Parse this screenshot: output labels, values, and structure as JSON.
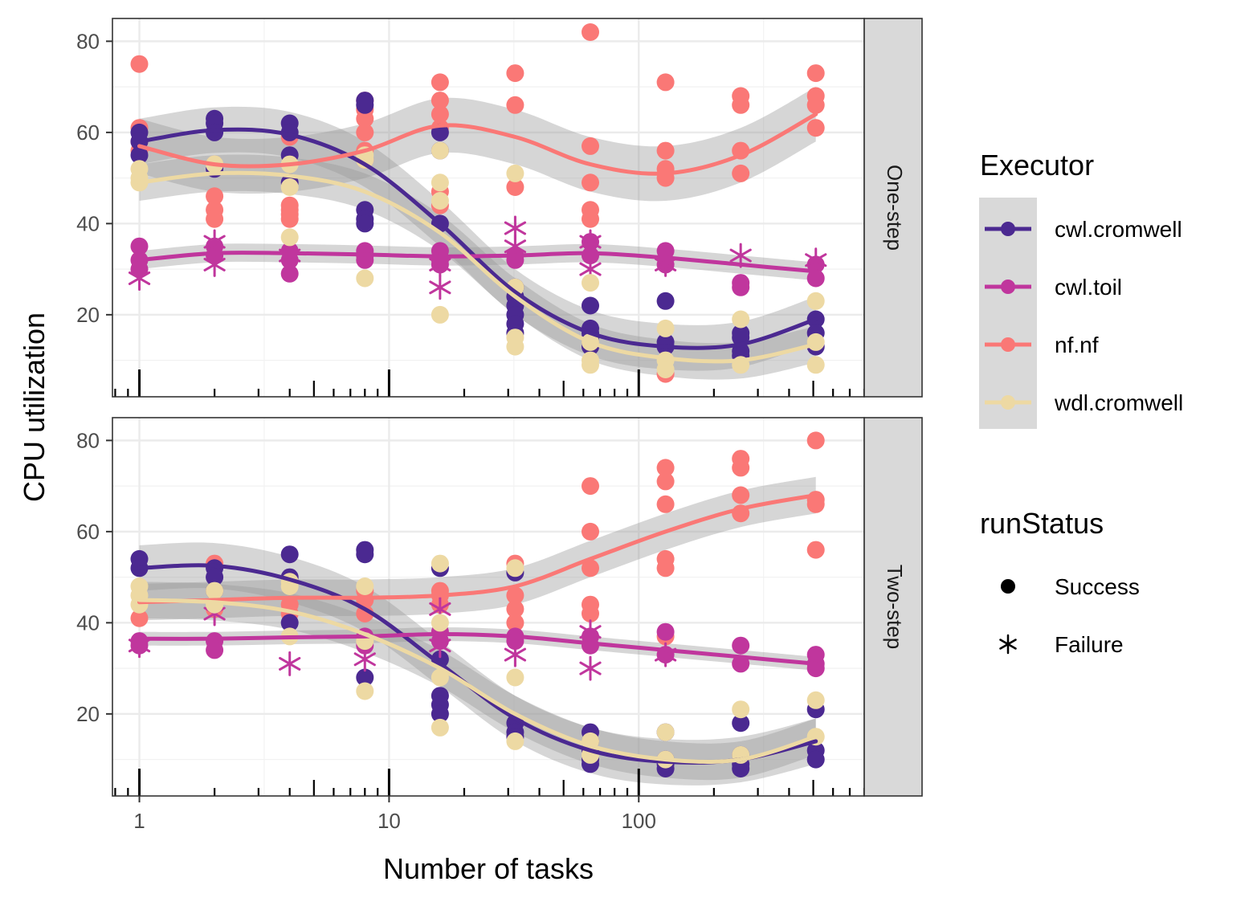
{
  "chart_data": {
    "type": "scatter",
    "subtype": "faceted scatter with loess smoothers and 95% confidence bands, log10 x axis",
    "xlabel": "Number of tasks",
    "ylabel": "CPU utilization",
    "x_scale": "log10",
    "xlim": [
      0.78,
      800
    ],
    "ylim": [
      2,
      85
    ],
    "x_ticks": [
      1,
      10,
      100
    ],
    "x_tick_labels": [
      "1",
      "10",
      "100"
    ],
    "y_ticks": [
      20,
      40,
      60,
      80
    ],
    "y_tick_labels": [
      "20",
      "40",
      "60",
      "80"
    ],
    "grid": true,
    "rug_ticks": "bottom (log ticks)",
    "theme": "bw",
    "legend_position": "right",
    "executor_legend": {
      "title": "Executor",
      "items": [
        {
          "key": "cwl.cromwell",
          "label": "cwl.cromwell",
          "color": "#4B2991"
        },
        {
          "key": "cwl.toil",
          "label": "cwl.toil",
          "color": "#C0369D"
        },
        {
          "key": "nf.nf",
          "label": "nf.nf",
          "color": "#FA7876"
        },
        {
          "key": "wdl.cromwell",
          "label": "wdl.cromwell",
          "color": "#EDD9A3"
        }
      ]
    },
    "status_legend": {
      "title": "runStatus",
      "items": [
        {
          "key": "Success",
          "label": "Success",
          "shape": "circle"
        },
        {
          "key": "Failure",
          "label": "Failure",
          "shape": "asterisk"
        }
      ]
    },
    "panels": [
      {
        "strip": "One-step",
        "smooths": [
          {
            "executor": "cwl.cromwell",
            "x": [
              1,
              2,
              4,
              8,
              16,
              32,
              64,
              128,
              256,
              512
            ],
            "y": [
              58,
              60.5,
              59.5,
              53,
              40,
              25,
              16,
              13,
              13.5,
              19
            ],
            "band": 5
          },
          {
            "executor": "cwl.toil",
            "x": [
              1,
              2,
              4,
              8,
              16,
              32,
              64,
              128,
              256,
              512
            ],
            "y": [
              32,
              33.5,
              33.5,
              33.2,
              32.8,
              33,
              33.5,
              32.5,
              31,
              29.5
            ],
            "band": 2
          },
          {
            "executor": "nf.nf",
            "x": [
              1,
              2,
              4,
              8,
              16,
              32,
              64,
              128,
              256,
              512
            ],
            "y": [
              57,
              53,
              53,
              56,
              61.5,
              59,
              53,
              51,
              55,
              64
            ],
            "band": 6
          },
          {
            "executor": "wdl.cromwell",
            "x": [
              1,
              2,
              4,
              8,
              16,
              32,
              64,
              128,
              256,
              512
            ],
            "y": [
              49,
              51,
              50.5,
              47,
              38,
              24,
              14,
              10.5,
              10,
              13.5
            ],
            "band": 4
          }
        ],
        "points": [
          {
            "executor": "nf.nf",
            "status": "Success",
            "x": [
              1,
              1,
              1,
              1,
              2,
              2,
              2,
              2,
              4,
              4,
              4,
              4,
              4,
              8,
              8,
              8,
              8,
              8,
              8,
              16,
              16,
              16,
              16,
              16,
              16,
              32,
              32,
              32,
              64,
              64,
              64,
              64,
              64,
              128,
              128,
              128,
              128,
              128,
              256,
              256,
              256,
              256,
              512,
              512,
              512,
              512
            ],
            "y": [
              75,
              61,
              58,
              56,
              53,
              46,
              43,
              41,
              59,
              44,
              42,
              41,
              43,
              67,
              65,
              63,
              60,
              56,
              54,
              71,
              67,
              64,
              61,
              47,
              44,
              73,
              66,
              48,
              82,
              57,
              49,
              43,
              41,
              71,
              56,
              52,
              50,
              7,
              68,
              66,
              56,
              51,
              73,
              68,
              66,
              61
            ]
          },
          {
            "executor": "cwl.cromwell",
            "status": "Success",
            "x": [
              1,
              1,
              1,
              2,
              2,
              2,
              2,
              4,
              4,
              4,
              4,
              8,
              8,
              8,
              8,
              8,
              16,
              16,
              16,
              32,
              32,
              32,
              32,
              32,
              32,
              64,
              64,
              64,
              64,
              64,
              64,
              128,
              128,
              128,
              256,
              256,
              256,
              256,
              512,
              512,
              512
            ],
            "y": [
              60,
              58,
              55,
              63,
              62,
              60,
              52,
              62,
              60,
              55,
              49,
              67,
              66,
              43,
              41,
              40,
              60,
              56,
              40,
              26,
              24,
              22,
              20,
              18,
              16,
              22,
              17,
              16,
              15,
              14,
              13,
              23,
              14,
              13,
              16,
              15,
              12,
              11,
              19,
              16,
              13
            ]
          },
          {
            "executor": "cwl.toil",
            "status": "Success",
            "x": [
              1,
              1,
              1,
              2,
              2,
              4,
              4,
              4,
              8,
              8,
              8,
              16,
              16,
              16,
              32,
              32,
              64,
              64,
              128,
              128,
              256,
              256,
              512,
              512
            ],
            "y": [
              35,
              32,
              30,
              35,
              33,
              34,
              32,
              29,
              34,
              33,
              32,
              34,
              32,
              31,
              33,
              32,
              36,
              33,
              34,
              31,
              27,
              26,
              31,
              28
            ]
          },
          {
            "executor": "cwl.toil",
            "status": "Failure",
            "x": [
              1,
              2,
              2,
              4,
              16,
              16,
              32,
              32,
              64,
              64,
              128,
              256,
              512
            ],
            "y": [
              28,
              36,
              31,
              33,
              31,
              26,
              39,
              35,
              36,
              30,
              31,
              33,
              32
            ]
          },
          {
            "executor": "wdl.cromwell",
            "status": "Success",
            "x": [
              1,
              1,
              1,
              2,
              2,
              4,
              4,
              4,
              8,
              8,
              8,
              16,
              16,
              16,
              16,
              32,
              32,
              32,
              32,
              64,
              64,
              64,
              64,
              128,
              128,
              128,
              256,
              256,
              512,
              512,
              512
            ],
            "y": [
              52,
              50,
              49,
              53,
              53,
              53,
              48,
              37,
              55,
              54,
              28,
              56,
              49,
              45,
              20,
              51,
              26,
              15,
              13,
              27,
              14,
              10,
              9,
              17,
              10,
              8,
              19,
              9,
              23,
              14,
              9
            ]
          }
        ]
      },
      {
        "strip": "Two-step",
        "smooths": [
          {
            "executor": "cwl.cromwell",
            "x": [
              1,
              2,
              4,
              8,
              16,
              32,
              64,
              128,
              256,
              512
            ],
            "y": [
              52,
              52.5,
              49.5,
              43,
              31,
              19,
              12,
              9.5,
              10,
              14
            ],
            "band": 5
          },
          {
            "executor": "cwl.toil",
            "x": [
              1,
              2,
              4,
              8,
              16,
              32,
              64,
              128,
              256,
              512
            ],
            "y": [
              36.5,
              36.5,
              36.8,
              37,
              37.5,
              37,
              35.5,
              34,
              32.5,
              31
            ],
            "band": 1.5
          },
          {
            "executor": "nf.nf",
            "x": [
              1,
              2,
              4,
              8,
              16,
              32,
              64,
              128,
              256,
              512
            ],
            "y": [
              44.5,
              45,
              45.5,
              45.5,
              46,
              48,
              54,
              60,
              65,
              68
            ],
            "band": 4
          },
          {
            "executor": "wdl.cromwell",
            "x": [
              1,
              2,
              4,
              8,
              16,
              32,
              64,
              128,
              256,
              512
            ],
            "y": [
              45,
              44.5,
              42.5,
              37.5,
              30,
              20,
              13,
              10,
              10,
              15
            ],
            "band": 4
          }
        ],
        "points": [
          {
            "executor": "nf.nf",
            "status": "Success",
            "x": [
              1,
              2,
              2,
              4,
              4,
              8,
              8,
              8,
              16,
              16,
              16,
              32,
              32,
              32,
              32,
              32,
              64,
              64,
              64,
              64,
              64,
              128,
              128,
              128,
              128,
              128,
              128,
              256,
              256,
              256,
              256,
              512,
              512,
              512,
              512
            ],
            "y": [
              41,
              53,
              43,
              44,
              42,
              47,
              45,
              42,
              47,
              46,
              44,
              53,
              46,
              43,
              40,
              37,
              70,
              60,
              52,
              44,
              42,
              74,
              71,
              66,
              54,
              52,
              37,
              76,
              74,
              68,
              64,
              80,
              67,
              66,
              56
            ]
          },
          {
            "executor": "cwl.cromwell",
            "status": "Success",
            "x": [
              1,
              1,
              2,
              2,
              2,
              4,
              4,
              4,
              8,
              8,
              8,
              16,
              16,
              16,
              16,
              16,
              32,
              32,
              32,
              32,
              64,
              64,
              64,
              64,
              64,
              128,
              128,
              128,
              128,
              256,
              256,
              256,
              256,
              512,
              512,
              512
            ],
            "y": [
              54,
              52,
              52,
              50,
              47,
              55,
              50,
              40,
              56,
              55,
              28,
              52,
              32,
              24,
              22,
              20,
              51,
              18,
              16,
              15,
              16,
              14,
              12,
              10,
              9,
              16,
              10,
              9,
              8,
              18,
              11,
              9,
              8,
              21,
              12,
              10
            ]
          },
          {
            "executor": "cwl.toil",
            "status": "Success",
            "x": [
              1,
              1,
              2,
              2,
              8,
              8,
              16,
              16,
              32,
              32,
              64,
              64,
              128,
              128,
              256,
              256,
              512,
              512,
              512
            ],
            "y": [
              36,
              35,
              36,
              34,
              37,
              35,
              38,
              36,
              37,
              36,
              37,
              35,
              38,
              33,
              35,
              31,
              33,
              31,
              30
            ]
          },
          {
            "executor": "cwl.toil",
            "status": "Failure",
            "x": [
              1,
              2,
              4,
              8,
              16,
              16,
              32,
              64,
              64,
              128
            ],
            "y": [
              35,
              42,
              31,
              32,
              43,
              35,
              33,
              38,
              30,
              33
            ]
          },
          {
            "executor": "wdl.cromwell",
            "status": "Success",
            "x": [
              1,
              1,
              1,
              2,
              2,
              4,
              4,
              4,
              8,
              8,
              8,
              16,
              16,
              16,
              16,
              32,
              32,
              32,
              64,
              64,
              128,
              128,
              256,
              256,
              512,
              512
            ],
            "y": [
              48,
              46,
              44,
              47,
              44,
              49,
              48,
              37,
              48,
              36,
              25,
              53,
              40,
              28,
              17,
              52,
              28,
              14,
              14,
              11,
              16,
              10,
              21,
              11,
              23,
              15
            ]
          }
        ]
      }
    ]
  }
}
